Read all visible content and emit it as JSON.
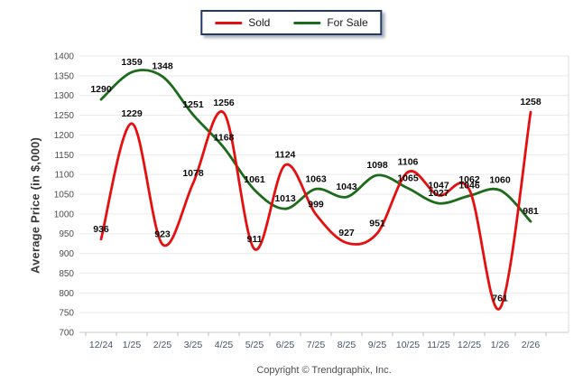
{
  "legend": {
    "items": [
      {
        "label": "Sold",
        "color": "#e60f0f"
      },
      {
        "label": "For Sale",
        "color": "#1a6b1a"
      }
    ]
  },
  "y_axis_title": "Average Price (in $,000)",
  "footer": {
    "copyright": "Copyright © Trendgraphix, Inc."
  },
  "chart_data": {
    "type": "line",
    "title": "",
    "xlabel": "",
    "ylabel": "Average Price (in $,000)",
    "categories": [
      "12/24",
      "1/25",
      "2/25",
      "3/25",
      "4/25",
      "5/25",
      "6/25",
      "7/25",
      "8/25",
      "9/25",
      "10/25",
      "11/25",
      "12/25",
      "1/26",
      "2/26"
    ],
    "series": [
      {
        "name": "Sold",
        "color": "#e60f0f",
        "values": [
          936,
          1229,
          923,
          1078,
          1256,
          911,
          1124,
          999,
          927,
          951,
          1106,
          1047,
          1062,
          761,
          1258
        ]
      },
      {
        "name": "For Sale",
        "color": "#1a6b1a",
        "values": [
          1290,
          1359,
          1348,
          1251,
          1168,
          1061,
          1013,
          1063,
          1043,
          1098,
          1065,
          1027,
          1046,
          1060,
          981
        ]
      }
    ],
    "ylim": [
      700,
      1400
    ],
    "ytick_step": 50,
    "y_tick_labels": [
      "700",
      "750",
      "800",
      "850",
      "900",
      "950",
      "1000",
      "1050",
      "1100",
      "1150",
      "1200",
      "1250",
      "1300",
      "1350",
      "1400"
    ],
    "grid": true,
    "smooth": true,
    "data_labels": true,
    "legend_position": "top-center"
  },
  "colors": {
    "grid_line": "#eaeaea",
    "axis_line": "#c9c9c9",
    "tick": "#b9b9b9",
    "right_border": "#d9d9d9",
    "y_tick_label": "#4d4d4d",
    "x_tick_label": "#44546a",
    "data_label": "#0a0a0a",
    "legend_border": "#1f3a68"
  }
}
